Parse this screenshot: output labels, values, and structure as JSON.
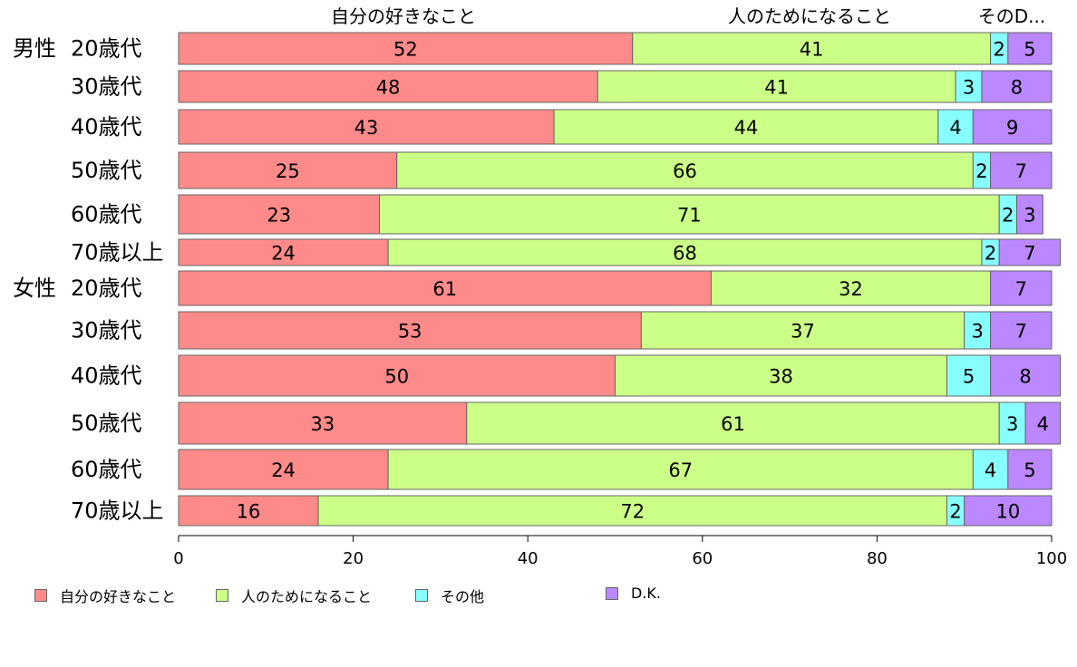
{
  "chart_data": {
    "type": "bar",
    "orientation": "horizontal",
    "stacked": true,
    "categories": [
      "男性 20歳代",
      "30歳代",
      "40歳代",
      "50歳代",
      "60歳代",
      "70歳以上",
      "女性 20歳代",
      "30歳代",
      "40歳代",
      "50歳代",
      "60歳代",
      "70歳以上"
    ],
    "series": [
      {
        "name": "自分の好きなこと",
        "color": "#FF8A8A",
        "values": [
          52,
          48,
          43,
          25,
          23,
          24,
          61,
          53,
          50,
          33,
          24,
          16
        ]
      },
      {
        "name": "人のためになること",
        "color": "#CCFF88",
        "values": [
          41,
          41,
          44,
          66,
          71,
          68,
          32,
          37,
          38,
          61,
          67,
          72
        ]
      },
      {
        "name": "その他",
        "color": "#88FFFF",
        "values": [
          2,
          3,
          4,
          2,
          2,
          2,
          0,
          3,
          5,
          3,
          4,
          2
        ]
      },
      {
        "name": "D.K.",
        "color": "#BB88FF",
        "values": [
          5,
          8,
          9,
          7,
          3,
          7,
          7,
          7,
          8,
          4,
          5,
          10
        ]
      }
    ],
    "top_labels": [
      "自分の好きなこと",
      "人のためになること",
      "そのD..."
    ],
    "xlim": [
      0,
      100
    ],
    "xticks": [
      "0",
      "20",
      "40",
      "60",
      "80",
      "100"
    ],
    "grid": false,
    "legend_position": "bottom"
  }
}
